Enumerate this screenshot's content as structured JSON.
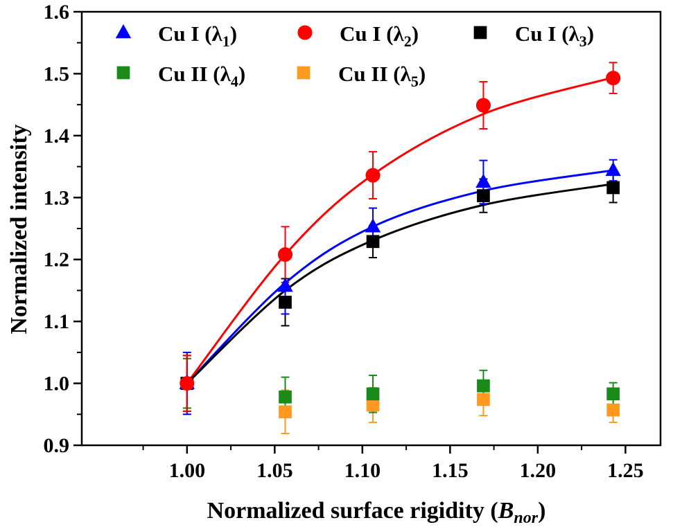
{
  "chart_data": {
    "type": "scatter",
    "xlabel_main": "Normalized surface rigidity (",
    "xlabel_var": "B",
    "xlabel_sub": "nor",
    "xlabel_end": ")",
    "ylabel": "Normalized intensity",
    "xlim": [
      0.94,
      1.27
    ],
    "ylim": [
      0.9,
      1.6
    ],
    "xticks": [
      "1.00",
      "1.05",
      "1.10",
      "1.15",
      "1.20",
      "1.25"
    ],
    "xtick_values": [
      1.0,
      1.05,
      1.1,
      1.15,
      1.2,
      1.25
    ],
    "yticks": [
      "0.9",
      "1.0",
      "1.1",
      "1.2",
      "1.3",
      "1.4",
      "1.5",
      "1.6"
    ],
    "ytick_values": [
      0.9,
      1.0,
      1.1,
      1.2,
      1.3,
      1.4,
      1.5,
      1.6
    ],
    "grid": false,
    "legend_position": "top",
    "x": [
      1.0,
      1.056,
      1.106,
      1.169,
      1.243
    ],
    "series": [
      {
        "name": "Cu I (λ1)",
        "label_base": "Cu I (λ",
        "label_sub": "1",
        "label_end": ")",
        "marker": "triangle",
        "color": "#0000ff",
        "values": [
          1.0,
          1.157,
          1.253,
          1.325,
          1.344
        ],
        "errors": [
          0.05,
          0.045,
          0.03,
          0.035,
          0.017
        ],
        "fit": [
          1.0,
          1.162,
          1.253,
          1.311,
          1.344
        ]
      },
      {
        "name": "Cu I (λ2)",
        "label_base": "Cu I (λ",
        "label_sub": "2",
        "label_end": ")",
        "marker": "circle",
        "color": "#ff0000",
        "values": [
          1.0,
          1.208,
          1.336,
          1.449,
          1.493
        ],
        "errors": [
          0.045,
          0.045,
          0.038,
          0.038,
          0.025
        ],
        "fit": [
          1.0,
          1.208,
          1.337,
          1.435,
          1.494
        ]
      },
      {
        "name": "Cu I (λ3)",
        "label_base": "Cu I (λ",
        "label_sub": "3",
        "label_end": ")",
        "marker": "square",
        "color": "#000000",
        "values": [
          1.0,
          1.131,
          1.229,
          1.303,
          1.316
        ],
        "errors": [
          0.045,
          0.038,
          0.026,
          0.027,
          0.024
        ],
        "fit": [
          1.0,
          1.15,
          1.231,
          1.288,
          1.322
        ]
      },
      {
        "name": "Cu II (λ4)",
        "label_base": "Cu II (λ",
        "label_sub": "4",
        "label_end": ")",
        "marker": "square",
        "color": "#1a8a1a",
        "values": [
          1.0,
          0.978,
          0.983,
          0.996,
          0.983
        ],
        "errors": [
          0.04,
          0.032,
          0.03,
          0.025,
          0.018
        ],
        "fit": null
      },
      {
        "name": "Cu II (λ5)",
        "label_base": "Cu II (λ",
        "label_sub": "5",
        "label_end": ")",
        "marker": "square",
        "color": "#ff9a1f",
        "values": [
          1.0,
          0.954,
          0.965,
          0.974,
          0.957
        ],
        "errors": [
          0.04,
          0.035,
          0.028,
          0.026,
          0.02
        ],
        "fit": null
      }
    ]
  }
}
